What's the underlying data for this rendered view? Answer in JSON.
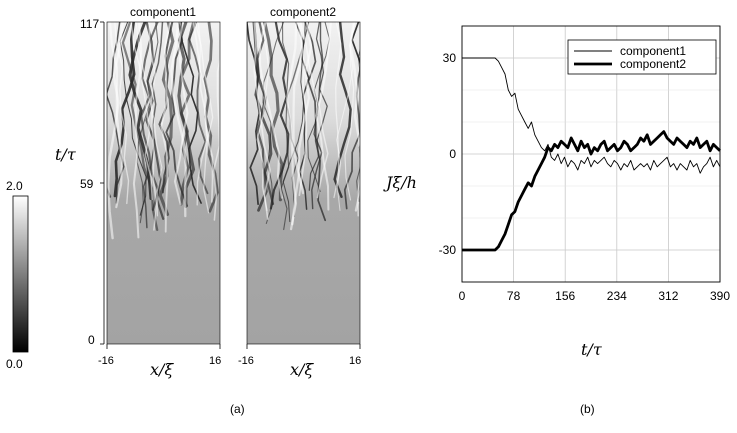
{
  "figure": {
    "panel_a": {
      "label": "(a)",
      "panels": [
        {
          "title": "component1"
        },
        {
          "title": "component2"
        }
      ],
      "y_axis": {
        "label": "t/τ",
        "ticks": [
          "0",
          "59",
          "117"
        ]
      },
      "x_axis": {
        "label": "x/ξ",
        "ticks": [
          "-16",
          "16"
        ]
      },
      "colorbar": {
        "max_label": "2.0",
        "min_label": "0.0",
        "range": [
          0.0,
          2.0
        ]
      }
    },
    "panel_b": {
      "label": "(b)",
      "x_axis": {
        "label": "t/τ",
        "ticks": [
          "0",
          "78",
          "156",
          "234",
          "312",
          "390"
        ]
      },
      "y_axis": {
        "label": "Jξ/h",
        "ticks": [
          "-30",
          "0",
          "30"
        ]
      }
    }
  },
  "chart_data": {
    "type": "line",
    "xlim": [
      0,
      390
    ],
    "ylim": [
      -40,
      40
    ],
    "grid": true,
    "legend_position": "top-right",
    "series": [
      {
        "name": "component1",
        "line_weight": "thin",
        "color": "#000000",
        "x": [
          0,
          20,
          40,
          50,
          55,
          60,
          65,
          70,
          75,
          80,
          85,
          90,
          95,
          100,
          105,
          110,
          115,
          120,
          125,
          130,
          135,
          140,
          145,
          150,
          155,
          160,
          165,
          170,
          175,
          180,
          185,
          190,
          195,
          200,
          205,
          210,
          215,
          220,
          225,
          230,
          235,
          240,
          245,
          250,
          255,
          260,
          265,
          270,
          275,
          280,
          285,
          290,
          295,
          300,
          305,
          310,
          315,
          320,
          325,
          330,
          335,
          340,
          345,
          350,
          355,
          360,
          365,
          370,
          375,
          380,
          385,
          390
        ],
        "y": [
          30,
          30,
          30,
          30,
          29,
          27,
          25,
          20,
          18,
          19,
          14,
          12,
          10,
          8,
          10,
          6,
          4,
          2,
          1,
          3,
          -1,
          -2,
          0,
          -3,
          -1,
          -4,
          -2,
          -3,
          -5,
          -2,
          -3,
          -1,
          -4,
          -2,
          -3,
          -2,
          -1,
          -3,
          -4,
          -2,
          -3,
          -5,
          -3,
          -4,
          -2,
          -5,
          -4,
          -3,
          -4,
          -3,
          -5,
          -2,
          -4,
          -3,
          -2,
          -1,
          -4,
          -3,
          -5,
          -3,
          -4,
          -5,
          -2,
          -4,
          -3,
          -6,
          -4,
          -3,
          -1,
          -4,
          -2,
          -4
        ]
      },
      {
        "name": "component2",
        "line_weight": "thick",
        "color": "#000000",
        "x": [
          0,
          20,
          40,
          50,
          55,
          60,
          65,
          70,
          75,
          80,
          85,
          90,
          95,
          100,
          105,
          110,
          115,
          120,
          125,
          130,
          135,
          140,
          145,
          150,
          155,
          160,
          165,
          170,
          175,
          180,
          185,
          190,
          195,
          200,
          205,
          210,
          215,
          220,
          225,
          230,
          235,
          240,
          245,
          250,
          255,
          260,
          265,
          270,
          275,
          280,
          285,
          290,
          295,
          300,
          305,
          310,
          315,
          320,
          325,
          330,
          335,
          340,
          345,
          350,
          355,
          360,
          365,
          370,
          375,
          380,
          385,
          390
        ],
        "y": [
          -30,
          -30,
          -30,
          -30,
          -29,
          -27,
          -25,
          -22,
          -19,
          -18,
          -15,
          -13,
          -11,
          -9,
          -10,
          -7,
          -5,
          -3,
          -1,
          2,
          1,
          3,
          2,
          4,
          3,
          2,
          5,
          3,
          1,
          4,
          2,
          3,
          0,
          2,
          1,
          3,
          4,
          1,
          2,
          3,
          1,
          2,
          4,
          3,
          1,
          2,
          3,
          5,
          4,
          6,
          3,
          4,
          5,
          6,
          7,
          5,
          4,
          3,
          5,
          4,
          3,
          2,
          4,
          3,
          5,
          2,
          3,
          4,
          1,
          3,
          2,
          1
        ]
      }
    ]
  }
}
